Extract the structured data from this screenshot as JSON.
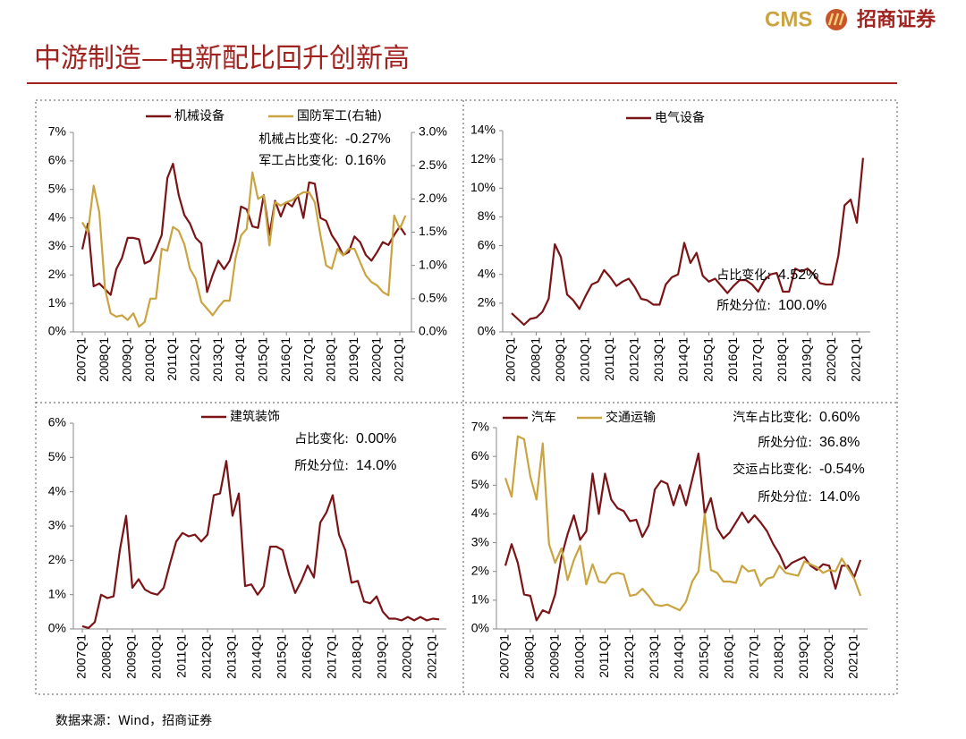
{
  "header": {
    "logo_text": "CMS",
    "logo_name": "招商证券",
    "title": "中游制造—电新配比回升创新高"
  },
  "source": "数据来源：Wind，招商证券",
  "chart_data": [
    {
      "type": "line",
      "categories": [
        "2007Q1",
        null,
        null,
        null,
        "2008Q1",
        null,
        null,
        null,
        "2009Q1",
        null,
        null,
        null,
        "2010Q1",
        null,
        null,
        null,
        "2011Q1",
        null,
        null,
        null,
        "2012Q1",
        null,
        null,
        null,
        "2013Q1",
        null,
        null,
        null,
        "2014Q1",
        null,
        null,
        null,
        "2015Q1",
        null,
        null,
        null,
        "2016Q1",
        null,
        null,
        null,
        "2017Q1",
        null,
        null,
        null,
        "2018Q1",
        null,
        null,
        null,
        "2019Q1",
        null,
        null,
        null,
        "2020Q1",
        null,
        null,
        null,
        "2021Q1",
        null
      ],
      "series": [
        {
          "name": "机械设备",
          "color": "#7b1416",
          "values": [
            2.9,
            3.8,
            1.6,
            1.7,
            1.5,
            1.3,
            2.2,
            2.6,
            3.3,
            3.3,
            3.25,
            2.4,
            2.5,
            2.9,
            3.4,
            5.4,
            5.9,
            4.8,
            4.1,
            3.8,
            3.3,
            3.1,
            1.4,
            2.0,
            2.5,
            2.2,
            2.5,
            3.2,
            4.4,
            4.3,
            3.7,
            3.65,
            4.8,
            3.4,
            4.6,
            4.05,
            4.55,
            4.4,
            4.8,
            4.0,
            5.25,
            5.2,
            4.0,
            3.9,
            3.4,
            3.1,
            2.7,
            2.8,
            3.35,
            3.15,
            2.7,
            2.5,
            2.8,
            3.15,
            3.05,
            3.4,
            3.7,
            3.4
          ]
        },
        {
          "name": "国防军工(右轴)",
          "color": "#c9a441",
          "axis": "y2",
          "values": [
            1.65,
            1.5,
            2.2,
            1.8,
            0.65,
            0.28,
            0.23,
            0.25,
            0.18,
            0.28,
            0.08,
            0.15,
            0.5,
            0.5,
            1.25,
            1.22,
            1.58,
            1.52,
            1.32,
            0.95,
            0.8,
            0.45,
            0.35,
            0.25,
            0.37,
            0.47,
            0.47,
            1.1,
            1.45,
            1.55,
            2.4,
            2.0,
            2.05,
            1.3,
            1.95,
            1.9,
            1.95,
            1.98,
            2.05,
            2.1,
            2.1,
            1.95,
            1.45,
            1.0,
            0.95,
            1.25,
            1.15,
            1.25,
            1.25,
            1.05,
            0.85,
            0.75,
            0.7,
            0.6,
            0.55,
            1.75,
            1.55,
            1.75
          ]
        }
      ],
      "ylim": [
        0,
        7
      ],
      "yticks": [
        {
          "value": 0,
          "label": "0%"
        },
        {
          "value": 1,
          "label": "1%"
        },
        {
          "value": 2,
          "label": "2%"
        },
        {
          "value": 3,
          "label": "3%"
        },
        {
          "value": 4,
          "label": "4%"
        },
        {
          "value": 5,
          "label": "5%"
        },
        {
          "value": 6,
          "label": "6%"
        },
        {
          "value": 7,
          "label": "7%"
        }
      ],
      "y2lim": [
        0,
        3
      ],
      "y2ticks": [
        {
          "value": 0,
          "label": "0.0%"
        },
        {
          "value": 0.5,
          "label": "0.5%"
        },
        {
          "value": 1,
          "label": "1.0%"
        },
        {
          "value": 1.5,
          "label": "1.5%"
        },
        {
          "value": 2,
          "label": "2.0%"
        },
        {
          "value": 2.5,
          "label": "2.5%"
        },
        {
          "value": 3,
          "label": "3.0%"
        }
      ],
      "annotations": [
        {
          "label": "机械占比变化:",
          "value": "-0.27%"
        },
        {
          "label": "军工占比变化:",
          "value": "0.16%"
        }
      ]
    },
    {
      "type": "line",
      "categories": [
        "2007Q1",
        null,
        null,
        null,
        "2008Q1",
        null,
        null,
        null,
        "2009Q1",
        null,
        null,
        null,
        "2010Q1",
        null,
        null,
        null,
        "2011Q1",
        null,
        null,
        null,
        "2012Q1",
        null,
        null,
        null,
        "2013Q1",
        null,
        null,
        null,
        "2014Q1",
        null,
        null,
        null,
        "2015Q1",
        null,
        null,
        null,
        "2016Q1",
        null,
        null,
        null,
        "2017Q1",
        null,
        null,
        null,
        "2018Q1",
        null,
        null,
        null,
        "2019Q1",
        null,
        null,
        null,
        "2020Q1",
        null,
        null,
        null,
        "2021Q1",
        null
      ],
      "series": [
        {
          "name": "电气设备",
          "color": "#7b1416",
          "values": [
            1.3,
            0.9,
            0.5,
            0.9,
            1.0,
            1.4,
            2.3,
            6.1,
            5.2,
            2.6,
            2.2,
            1.6,
            2.5,
            3.3,
            3.5,
            4.3,
            3.8,
            3.2,
            3.5,
            3.7,
            3.1,
            2.3,
            2.2,
            1.9,
            1.9,
            3.3,
            3.8,
            4.0,
            6.2,
            4.8,
            5.5,
            3.9,
            3.5,
            3.7,
            3.2,
            2.7,
            3.2,
            3.6,
            3.6,
            3.3,
            2.8,
            3.6,
            4.0,
            4.1,
            2.8,
            2.8,
            4.4,
            4.2,
            4.4,
            4.0,
            3.4,
            3.3,
            3.3,
            5.3,
            8.8,
            9.2,
            7.6,
            12.1
          ]
        }
      ],
      "ylim": [
        0,
        14
      ],
      "yticks": [
        {
          "value": 0,
          "label": "0%"
        },
        {
          "value": 2,
          "label": "2%"
        },
        {
          "value": 4,
          "label": "4%"
        },
        {
          "value": 6,
          "label": "6%"
        },
        {
          "value": 8,
          "label": "8%"
        },
        {
          "value": 10,
          "label": "10%"
        },
        {
          "value": 12,
          "label": "12%"
        },
        {
          "value": 14,
          "label": "14%"
        }
      ],
      "annotations": [
        {
          "label": "占比变化:",
          "value": "4.52%"
        },
        {
          "label": "所处分位:",
          "value": "100.0%"
        }
      ]
    },
    {
      "type": "line",
      "categories": [
        "2007Q1",
        null,
        null,
        null,
        "2008Q1",
        null,
        null,
        null,
        "2009Q1",
        null,
        null,
        null,
        "2010Q1",
        null,
        null,
        null,
        "2011Q1",
        null,
        null,
        null,
        "2012Q1",
        null,
        null,
        null,
        "2013Q1",
        null,
        null,
        null,
        "2014Q1",
        null,
        null,
        null,
        "2015Q1",
        null,
        null,
        null,
        "2016Q1",
        null,
        null,
        null,
        "2017Q1",
        null,
        null,
        null,
        "2018Q1",
        null,
        null,
        null,
        "2019Q1",
        null,
        null,
        null,
        "2020Q1",
        null,
        null,
        null,
        "2021Q1",
        null
      ],
      "series": [
        {
          "name": "建筑装饰",
          "color": "#7b1416",
          "values": [
            0.08,
            0.03,
            0.2,
            1.0,
            0.9,
            0.95,
            2.3,
            3.3,
            1.2,
            1.45,
            1.15,
            1.05,
            1.0,
            1.2,
            1.9,
            2.55,
            2.8,
            2.7,
            2.75,
            2.55,
            2.75,
            3.9,
            3.95,
            4.9,
            3.3,
            3.95,
            1.25,
            1.3,
            1.0,
            1.25,
            2.4,
            2.4,
            2.3,
            1.6,
            1.05,
            1.4,
            1.85,
            1.5,
            3.1,
            3.4,
            3.9,
            2.75,
            2.3,
            1.35,
            1.4,
            0.8,
            0.75,
            0.95,
            0.5,
            0.3,
            0.3,
            0.25,
            0.35,
            0.25,
            0.35,
            0.25,
            0.3,
            0.28
          ]
        }
      ],
      "ylim": [
        0,
        6
      ],
      "yticks": [
        {
          "value": 0,
          "label": "0%"
        },
        {
          "value": 1,
          "label": "1%"
        },
        {
          "value": 2,
          "label": "2%"
        },
        {
          "value": 3,
          "label": "3%"
        },
        {
          "value": 4,
          "label": "4%"
        },
        {
          "value": 5,
          "label": "5%"
        },
        {
          "value": 6,
          "label": "6%"
        }
      ],
      "annotations": [
        {
          "label": "占比变化:",
          "value": "0.00%"
        },
        {
          "label": "所处分位:",
          "value": "14.0%"
        }
      ]
    },
    {
      "type": "line",
      "categories": [
        "2007Q1",
        null,
        null,
        null,
        "2008Q1",
        null,
        null,
        null,
        "2009Q1",
        null,
        null,
        null,
        "2010Q1",
        null,
        null,
        null,
        "2011Q1",
        null,
        null,
        null,
        "2012Q1",
        null,
        null,
        null,
        "2013Q1",
        null,
        null,
        null,
        "2014Q1",
        null,
        null,
        null,
        "2015Q1",
        null,
        null,
        null,
        "2016Q1",
        null,
        null,
        null,
        "2017Q1",
        null,
        null,
        null,
        "2018Q1",
        null,
        null,
        null,
        "2019Q1",
        null,
        null,
        null,
        "2020Q1",
        null,
        null,
        null,
        "2021Q1",
        null
      ],
      "series": [
        {
          "name": "汽车",
          "color": "#7b1416",
          "values": [
            2.2,
            2.95,
            2.3,
            1.2,
            1.15,
            0.3,
            0.65,
            0.55,
            1.2,
            2.5,
            3.3,
            3.95,
            3.1,
            3.4,
            5.4,
            4.0,
            5.4,
            4.5,
            4.2,
            4.1,
            3.75,
            3.8,
            3.2,
            3.6,
            4.85,
            5.15,
            5.05,
            4.3,
            5.0,
            4.3,
            5.2,
            6.1,
            4.0,
            4.55,
            3.5,
            3.15,
            3.35,
            3.7,
            4.05,
            3.7,
            3.95,
            3.7,
            3.4,
            2.95,
            2.6,
            2.1,
            2.3,
            2.4,
            2.5,
            2.2,
            2.05,
            2.25,
            2.2,
            1.4,
            2.2,
            2.2,
            1.8,
            2.4
          ]
        },
        {
          "name": "交通运输",
          "color": "#c9a441",
          "values": [
            5.25,
            4.6,
            6.7,
            6.6,
            5.3,
            4.5,
            6.45,
            2.95,
            2.3,
            2.8,
            1.7,
            2.4,
            2.9,
            1.55,
            2.25,
            1.65,
            1.6,
            1.9,
            1.95,
            1.9,
            1.15,
            1.2,
            1.4,
            1.15,
            0.85,
            0.8,
            0.85,
            0.75,
            0.65,
            0.95,
            1.65,
            2.0,
            4.0,
            2.05,
            1.95,
            1.65,
            1.65,
            1.6,
            2.2,
            2.0,
            2.05,
            1.5,
            1.75,
            1.8,
            2.2,
            1.95,
            1.9,
            1.85,
            2.35,
            2.25,
            2.15,
            1.95,
            2.05,
            2.0,
            2.45,
            2.1,
            1.75,
            1.15
          ]
        }
      ],
      "ylim": [
        0,
        7
      ],
      "yticks": [
        {
          "value": 0,
          "label": "0%"
        },
        {
          "value": 1,
          "label": "1%"
        },
        {
          "value": 2,
          "label": "2%"
        },
        {
          "value": 3,
          "label": "3%"
        },
        {
          "value": 4,
          "label": "4%"
        },
        {
          "value": 5,
          "label": "5%"
        },
        {
          "value": 6,
          "label": "6%"
        },
        {
          "value": 7,
          "label": "7%"
        }
      ],
      "annotations": [
        {
          "label": "汽车占比变化:",
          "value": "0.60%"
        },
        {
          "label": "所处分位:",
          "value": "36.8%"
        },
        {
          "label": "交运占比变化:",
          "value": "-0.54%"
        },
        {
          "label": "所处分位:",
          "value": "14.0%"
        }
      ]
    }
  ]
}
